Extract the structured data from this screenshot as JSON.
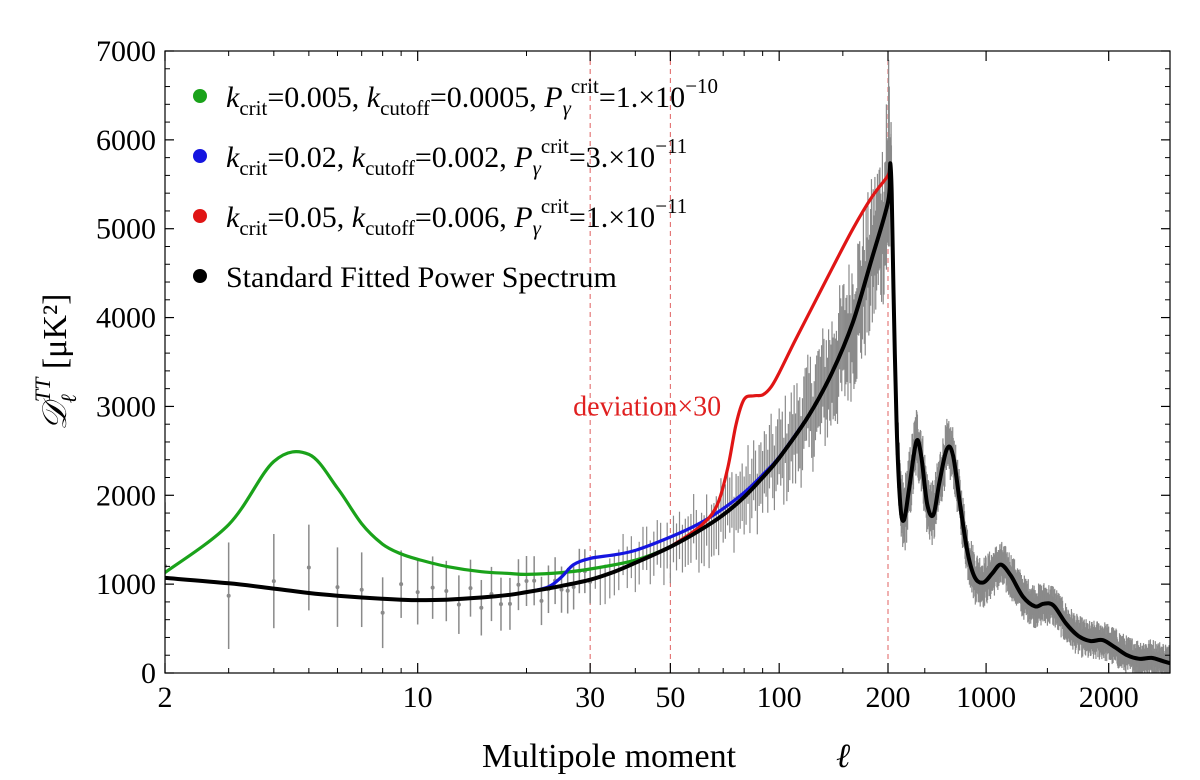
{
  "chart_data": {
    "type": "line",
    "xscale": "mixed (log for l<=200, linear above)",
    "xlim": [
      2,
      2500
    ],
    "ylim": [
      0,
      7000
    ],
    "xlabel": "Multipole moment",
    "xlabel_symbol": "ℓ",
    "ylabel": "𝒟_ℓ^TT [μK²]",
    "ylabel_main": "𝒟",
    "ylabel_sub": "ℓ",
    "ylabel_sup": "TT",
    "ylabel_unit": " [μK²]",
    "x_ticks": [
      {
        "value": 2,
        "label": "2"
      },
      {
        "value": 10,
        "label": "10"
      },
      {
        "value": 30,
        "label": "30"
      },
      {
        "value": 50,
        "label": "50"
      },
      {
        "value": 100,
        "label": "100"
      },
      {
        "value": 200,
        "label": "200"
      },
      {
        "value": 1000,
        "label": "1000"
      },
      {
        "value": 2000,
        "label": "2000"
      }
    ],
    "y_ticks": [
      {
        "value": 0,
        "label": "0"
      },
      {
        "value": 1000,
        "label": "1000"
      },
      {
        "value": 2000,
        "label": "2000"
      },
      {
        "value": 3000,
        "label": "3000"
      },
      {
        "value": 4000,
        "label": "4000"
      },
      {
        "value": 5000,
        "label": "5000"
      },
      {
        "value": 6000,
        "label": "6000"
      },
      {
        "value": 7000,
        "label": "7000"
      }
    ],
    "vlines": [
      30,
      50,
      200
    ],
    "annotation": {
      "text": "deviation×30",
      "color": "#e02020",
      "x": 70,
      "y": 3350
    },
    "legend_position": "top-left",
    "legend": [
      {
        "color": "#1aa21a",
        "parts": [
          {
            "t": "k",
            "it": true
          },
          {
            "t": "crit",
            "sub": true
          },
          {
            "t": "=0.005, "
          },
          {
            "t": "k",
            "it": true
          },
          {
            "t": "cutoff",
            "sub": true
          },
          {
            "t": "=0.0005, "
          },
          {
            "t": "P",
            "it": true
          },
          {
            "t": "γ",
            "sub": true,
            "it": true
          },
          {
            "t": "crit",
            "sup": true
          },
          {
            "t": "=1.×10"
          },
          {
            "t": "−10",
            "sup": true
          }
        ]
      },
      {
        "color": "#1515e0",
        "parts": [
          {
            "t": "k",
            "it": true
          },
          {
            "t": "crit",
            "sub": true
          },
          {
            "t": "=0.02, "
          },
          {
            "t": "k",
            "it": true
          },
          {
            "t": "cutoff",
            "sub": true
          },
          {
            "t": "=0.002, "
          },
          {
            "t": "P",
            "it": true
          },
          {
            "t": "γ",
            "sub": true,
            "it": true
          },
          {
            "t": "crit",
            "sup": true
          },
          {
            "t": "=3.×10"
          },
          {
            "t": "−11",
            "sup": true
          }
        ]
      },
      {
        "color": "#e01515",
        "parts": [
          {
            "t": "k",
            "it": true
          },
          {
            "t": "crit",
            "sub": true
          },
          {
            "t": "=0.05, "
          },
          {
            "t": "k",
            "it": true
          },
          {
            "t": "cutoff",
            "sub": true
          },
          {
            "t": "=0.006, "
          },
          {
            "t": "P",
            "it": true
          },
          {
            "t": "γ",
            "sub": true,
            "it": true
          },
          {
            "t": "crit",
            "sup": true
          },
          {
            "t": "=1.×10"
          },
          {
            "t": "−11",
            "sup": true
          }
        ]
      },
      {
        "color": "#000000",
        "parts": [
          {
            "t": "Standard Fitted Power Spectrum"
          }
        ]
      }
    ],
    "series": [
      {
        "name": "Standard Fitted Power Spectrum",
        "color": "#000000",
        "points": [
          [
            2,
            1070
          ],
          [
            3,
            1010
          ],
          [
            4,
            950
          ],
          [
            5,
            900
          ],
          [
            6,
            870
          ],
          [
            7,
            850
          ],
          [
            8,
            835
          ],
          [
            9,
            825
          ],
          [
            10,
            820
          ],
          [
            12,
            825
          ],
          [
            15,
            850
          ],
          [
            18,
            880
          ],
          [
            20,
            910
          ],
          [
            25,
            980
          ],
          [
            30,
            1050
          ],
          [
            35,
            1140
          ],
          [
            40,
            1240
          ],
          [
            50,
            1420
          ],
          [
            60,
            1600
          ],
          [
            70,
            1780
          ],
          [
            80,
            1980
          ],
          [
            90,
            2200
          ],
          [
            100,
            2420
          ],
          [
            120,
            2880
          ],
          [
            140,
            3380
          ],
          [
            160,
            3950
          ],
          [
            180,
            4650
          ],
          [
            200,
            5300
          ],
          [
            215,
            5650
          ],
          [
            220,
            5720
          ],
          [
            230,
            5400
          ],
          [
            245,
            4300
          ],
          [
            270,
            2800
          ],
          [
            300,
            1900
          ],
          [
            330,
            1720
          ],
          [
            370,
            2050
          ],
          [
            430,
            2600
          ],
          [
            470,
            2450
          ],
          [
            520,
            1900
          ],
          [
            570,
            1780
          ],
          [
            620,
            2150
          ],
          [
            680,
            2520
          ],
          [
            730,
            2450
          ],
          [
            790,
            1880
          ],
          [
            850,
            1350
          ],
          [
            910,
            1070
          ],
          [
            980,
            1020
          ],
          [
            1050,
            1120
          ],
          [
            1120,
            1220
          ],
          [
            1200,
            1100
          ],
          [
            1300,
            860
          ],
          [
            1400,
            750
          ],
          [
            1470,
            780
          ],
          [
            1550,
            760
          ],
          [
            1650,
            560
          ],
          [
            1750,
            420
          ],
          [
            1850,
            360
          ],
          [
            1950,
            370
          ],
          [
            2050,
            290
          ],
          [
            2150,
            200
          ],
          [
            2250,
            160
          ],
          [
            2350,
            170
          ],
          [
            2450,
            130
          ],
          [
            2500,
            110
          ]
        ]
      },
      {
        "name": "k_crit=0.005, k_cutoff=0.0005",
        "color": "#1aa21a",
        "points": [
          [
            2,
            1130
          ],
          [
            3,
            1670
          ],
          [
            4,
            2380
          ],
          [
            5,
            2460
          ],
          [
            6,
            2080
          ],
          [
            7,
            1680
          ],
          [
            8,
            1450
          ],
          [
            9,
            1340
          ],
          [
            10,
            1280
          ],
          [
            12,
            1200
          ],
          [
            15,
            1140
          ],
          [
            18,
            1120
          ],
          [
            20,
            1110
          ],
          [
            25,
            1130
          ],
          [
            30,
            1170
          ],
          [
            40,
            1270
          ],
          [
            50,
            1420
          ],
          [
            60,
            1600
          ],
          [
            70,
            1780
          ],
          [
            80,
            1980
          ],
          [
            90,
            2200
          ],
          [
            100,
            2420
          ]
        ]
      },
      {
        "name": "k_crit=0.02, k_cutoff=0.002",
        "color": "#1515e0",
        "points": [
          [
            20,
            910
          ],
          [
            23,
            970
          ],
          [
            25,
            1080
          ],
          [
            27,
            1220
          ],
          [
            30,
            1290
          ],
          [
            35,
            1330
          ],
          [
            40,
            1380
          ],
          [
            50,
            1530
          ],
          [
            60,
            1680
          ],
          [
            70,
            1850
          ],
          [
            80,
            2030
          ],
          [
            90,
            2230
          ],
          [
            100,
            2430
          ],
          [
            120,
            2880
          ]
        ]
      },
      {
        "name": "k_crit=0.05, k_cutoff=0.006",
        "color": "#e01515",
        "points": [
          [
            50,
            1420
          ],
          [
            60,
            1640
          ],
          [
            67,
            1870
          ],
          [
            72,
            2300
          ],
          [
            76,
            2800
          ],
          [
            80,
            3080
          ],
          [
            85,
            3120
          ],
          [
            90,
            3130
          ],
          [
            95,
            3220
          ],
          [
            100,
            3380
          ],
          [
            110,
            3720
          ],
          [
            120,
            4020
          ],
          [
            140,
            4550
          ],
          [
            160,
            5000
          ],
          [
            180,
            5350
          ],
          [
            200,
            5600
          ],
          [
            215,
            5700
          ],
          [
            220,
            5720
          ]
        ]
      }
    ]
  }
}
